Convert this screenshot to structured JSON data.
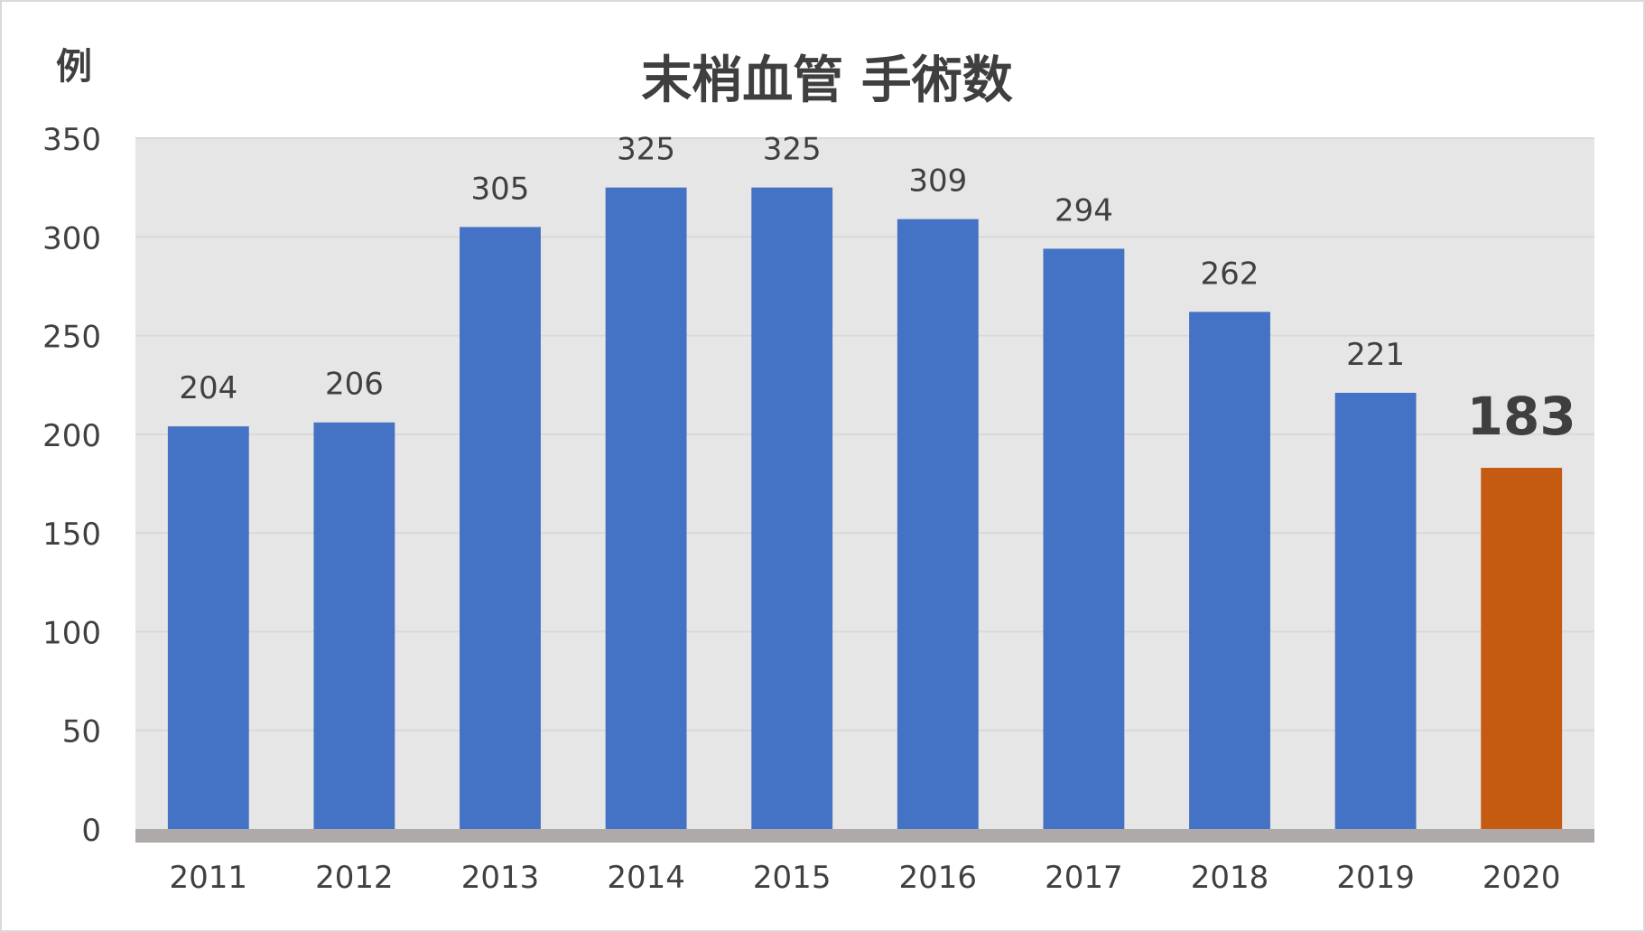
{
  "chart_data": {
    "type": "bar",
    "title": "末梢血管 手術数",
    "ylabel": "例",
    "xlabel": "",
    "categories": [
      "2011",
      "2012",
      "2013",
      "2014",
      "2015",
      "2016",
      "2017",
      "2018",
      "2019",
      "2020"
    ],
    "values": [
      204,
      206,
      305,
      325,
      325,
      309,
      294,
      262,
      221,
      183
    ],
    "data_labels": [
      "204",
      "206",
      "305",
      "325",
      "325",
      "309",
      "294",
      "262",
      "221",
      "183"
    ],
    "ylim": [
      0,
      350
    ],
    "yticks": [
      0,
      50,
      100,
      150,
      200,
      250,
      300,
      350
    ],
    "ytick_labels": [
      "0",
      "50",
      "100",
      "150",
      "200",
      "250",
      "300",
      "350"
    ],
    "highlight_index": 9,
    "grid": true,
    "legend": "none"
  },
  "colors": {
    "bar": "#4472c4",
    "highlight_bar": "#c55a11",
    "plot_background": "#e7e6e6",
    "gridline": "#d9d9d9",
    "baseline": "#aeaaaa",
    "text": "#404040",
    "title": "#3f3f3f"
  }
}
